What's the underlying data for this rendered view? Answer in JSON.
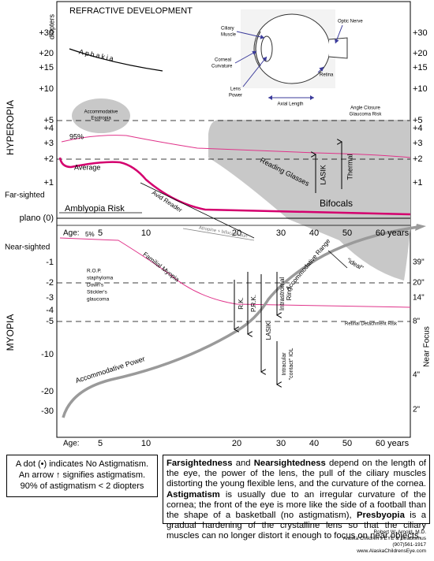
{
  "title": "REFRACTIVE DEVELOPMENT",
  "unit": "diopters",
  "left_axis": [
    "+30",
    "+20",
    "+15",
    "+10",
    "+5",
    "+4",
    "+3",
    "+2",
    "+1",
    "plano (0)",
    "-1",
    "-2",
    "-3",
    "-4",
    "-5",
    "-10",
    "-20",
    "-30"
  ],
  "right_axis": [
    "+30",
    "+20",
    "+15",
    "+10",
    "+5",
    "+4",
    "+3",
    "+2",
    "+1"
  ],
  "near_focus": [
    "39\"",
    "20\"",
    "14\"",
    "8\"",
    "4\"",
    "2\""
  ],
  "near_focus_label": "Near Focus",
  "age_label": "Age:",
  "ages": [
    "5",
    "10",
    "20",
    "30",
    "40",
    "50",
    "60 years"
  ],
  "side_labels": {
    "hyperopia": "HYPEROPIA",
    "myopia": "MYOPIA",
    "far": "Far-sighted",
    "near": "Near-sighted"
  },
  "eye": {
    "ciliary": [
      "Ciliary",
      "Muscle"
    ],
    "optic": "Optic Nerve",
    "corneal": [
      "Corneal",
      "Curvature"
    ],
    "lens": [
      "Lens",
      "Power"
    ],
    "retina": "Retina",
    "axial": "Axial Length"
  },
  "annotations": {
    "aphakia": "Aphakia",
    "esotropia": [
      "Accommodative",
      "Esotropia"
    ],
    "angle": [
      "Angle Closure",
      "Glaucoma Risk"
    ],
    "p95": "95%",
    "average": "Average",
    "reading": "Reading Glasses",
    "lasik_up": "LASIK",
    "thermal": "Thermal",
    "bifocals": "Bifocals",
    "amblyopia": "Amblyopia Risk",
    "avid": "Avid Reader",
    "p5": "5%",
    "atropine": "Atropine + bifocals, sun",
    "familial": "Familial Myopia",
    "range": "Accommodative Range",
    "ideal": "\"ideal\"",
    "rop": [
      "R.O.P.",
      "staphyloma",
      "Down's",
      "Stickler's",
      "glaucoma"
    ],
    "rk": "R.K.",
    "prk": "P.R.K.",
    "lasik": "LASIK",
    "ring": [
      "Intrastromal",
      "Ring"
    ],
    "iol": [
      "Intracular",
      "\"contact\" IOL"
    ],
    "retinal": "Retinal Detachment Risk",
    "power": "Accommodative Power"
  },
  "astigmatism_note": [
    "A dot (•) indicates No Astigmatism.",
    "An arrow ↑ signifies astigmatism.",
    "90% of astigmatism < 2 diopters"
  ],
  "paragraph": [
    {
      "text": "Farsightedness",
      "bold": true
    },
    {
      "text": " and ",
      "bold": false
    },
    {
      "text": "Nearsightedness",
      "bold": true
    },
    {
      "text": " depend on the length of the eye, the power of the lens, the pull of the ciliary muscles distorting the young flexible lens, and the curvature of the cornea. ",
      "bold": false
    },
    {
      "text": "Astigmatism",
      "bold": true
    },
    {
      "text": " is usually due to an irregular curvature of the cornea; the front of the eye is more like the side of a football than the shape of a basketball (no astigmatism), ",
      "bold": false
    },
    {
      "text": "Presbyopia",
      "bold": true
    },
    {
      "text": " is a gradual hardening of the crystalline lens so that the ciliary muscles can no longer distort it enough to focus on near objects.",
      "bold": false
    }
  ],
  "credit": [
    "Robert W. Arnold, M.D.",
    "Alaska Children's EYE & Strabismus",
    "(907)561-1917",
    "www.AlaskaChildrensEye.com"
  ]
}
